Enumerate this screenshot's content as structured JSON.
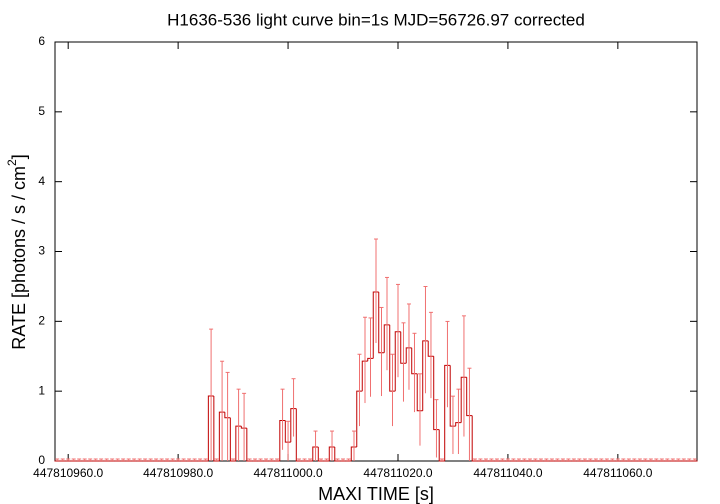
{
  "chart_data": {
    "type": "histogram-errorbar",
    "title": "H1636-536 light curve bin=1s MJD=56726.97 corrected",
    "x_label": "MAXI TIME [s]",
    "y_label": "RATE [photons / s / cm",
    "y_label_sup": "2",
    "y_label_end": "]",
    "color": "#c00000",
    "error_color": "#f07070",
    "xlim": [
      447810957.6,
      447811074.4
    ],
    "ylim": [
      0,
      6
    ],
    "xticks": [
      {
        "value": 447810960,
        "label": "447810960.0"
      },
      {
        "value": 447810980,
        "label": "447810980.0"
      },
      {
        "value": 447811000,
        "label": "447811000.0"
      },
      {
        "value": 447811020,
        "label": "447811020.0"
      },
      {
        "value": 447811040,
        "label": "447811040.0"
      },
      {
        "value": 447811060,
        "label": "447811060.0"
      }
    ],
    "yticks": [
      0,
      1,
      2,
      3,
      4,
      5,
      6
    ],
    "x": [
      447810958,
      447810959,
      447810960,
      447810961,
      447810962,
      447810963,
      447810964,
      447810965,
      447810966,
      447810967,
      447810968,
      447810969,
      447810970,
      447810971,
      447810972,
      447810973,
      447810974,
      447810975,
      447810976,
      447810977,
      447810978,
      447810979,
      447810980,
      447810981,
      447810982,
      447810983,
      447810984,
      447810985,
      447810986,
      447810987,
      447810988,
      447810989,
      447810990,
      447810991,
      447810992,
      447810993,
      447810994,
      447810995,
      447810996,
      447810997,
      447810998,
      447810999,
      447811000,
      447811001,
      447811002,
      447811003,
      447811004,
      447811005,
      447811006,
      447811007,
      447811008,
      447811009,
      447811010,
      447811011,
      447811012,
      447811013,
      447811014,
      447811015,
      447811016,
      447811017,
      447811018,
      447811019,
      447811020,
      447811021,
      447811022,
      447811023,
      447811024,
      447811025,
      447811026,
      447811027,
      447811028,
      447811029,
      447811030,
      447811031,
      447811032,
      447811033,
      447811034,
      447811035,
      447811036,
      447811037,
      447811038,
      447811039,
      447811040,
      447811041,
      447811042,
      447811043,
      447811044,
      447811045,
      447811046,
      447811047,
      447811048,
      447811049,
      447811050,
      447811051,
      447811052,
      447811053,
      447811054,
      447811055,
      447811056,
      447811057,
      447811058,
      447811059,
      447811060,
      447811061,
      447811062,
      447811063,
      447811064,
      447811065,
      447811066,
      447811067,
      447811068,
      447811069,
      447811070,
      447811071,
      447811072,
      447811073,
      447811074
    ],
    "values": [
      0,
      0,
      0,
      0,
      0,
      0,
      0,
      0,
      0,
      0,
      0,
      0,
      0,
      0,
      0,
      0,
      0,
      0,
      0,
      0,
      0,
      0,
      0,
      0,
      0,
      0,
      0,
      0,
      0.93,
      0,
      0.7,
      0.62,
      0,
      0.5,
      0.47,
      0,
      0,
      0,
      0,
      0,
      0,
      0.58,
      0.27,
      0.75,
      0,
      0,
      0,
      0.2,
      0,
      0,
      0.2,
      0,
      0,
      0,
      0.2,
      1.0,
      1.43,
      1.47,
      2.42,
      1.55,
      1.95,
      1.0,
      1.85,
      1.4,
      1.62,
      1.25,
      0.72,
      1.72,
      1.5,
      0.45,
      0,
      1.37,
      0.5,
      0.55,
      1.2,
      0.65,
      0,
      0,
      0,
      0,
      0,
      0,
      0,
      0,
      0,
      0,
      0,
      0,
      0,
      0,
      0,
      0,
      0,
      0,
      0,
      0,
      0,
      0,
      0,
      0,
      0,
      0,
      0,
      0,
      0,
      0,
      0,
      0,
      0,
      0,
      0,
      0,
      0,
      0,
      0,
      0,
      0
    ],
    "errors": [
      0,
      0,
      0,
      0,
      0,
      0,
      0,
      0,
      0,
      0,
      0,
      0,
      0,
      0,
      0,
      0,
      0,
      0,
      0,
      0,
      0,
      0,
      0,
      0,
      0,
      0,
      0,
      0,
      0.93,
      0,
      0.7,
      0.62,
      0,
      0.5,
      0.47,
      0,
      0,
      0,
      0,
      0,
      0,
      0.42,
      0.27,
      0.4,
      0,
      0,
      0,
      0.2,
      0,
      0,
      0.2,
      0,
      0,
      0,
      0.2,
      0.5,
      0.6,
      0.55,
      0.73,
      0.62,
      0.65,
      0.5,
      0.65,
      0.55,
      0.6,
      0.55,
      0.5,
      0.75,
      0.6,
      0.4,
      0,
      0.6,
      0.4,
      0.45,
      0.85,
      0.65,
      0,
      0,
      0,
      0,
      0,
      0,
      0,
      0,
      0,
      0,
      0,
      0,
      0,
      0,
      0,
      0,
      0,
      0,
      0,
      0,
      0,
      0,
      0,
      0,
      0,
      0,
      0,
      0,
      0,
      0,
      0,
      0,
      0,
      0,
      0,
      0,
      0,
      0,
      0,
      0,
      0
    ]
  }
}
